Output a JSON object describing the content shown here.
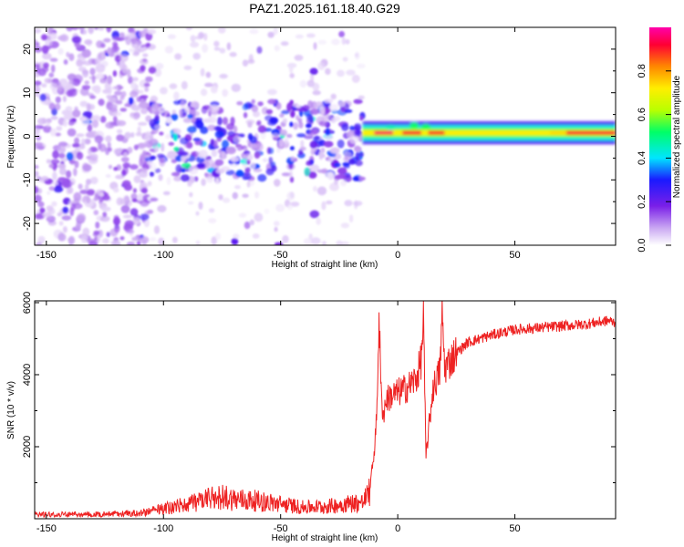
{
  "figure_title": "PAZ1.2025.161.18.40.G29",
  "colorbar": {
    "label": "Normalized spectral amplitude",
    "ticks": [
      0.0,
      0.2,
      0.4,
      0.6,
      0.8
    ],
    "tick_labels": [
      "0.0",
      "0.2",
      "0.4",
      "0.6",
      "0.8"
    ],
    "range": [
      0,
      1
    ],
    "colormap": [
      "#ffffff",
      "#c9a6f2",
      "#7a1fe8",
      "#1a1aff",
      "#00e5ff",
      "#00ff66",
      "#b9ff00",
      "#ffee00",
      "#ff8800",
      "#ff0033",
      "#ff00aa"
    ]
  },
  "chart_data": [
    {
      "type": "heatmap",
      "xlabel": "Height of straight line (km)",
      "ylabel": "Frequency (Hz)",
      "xlim": [
        -155,
        93
      ],
      "ylim": [
        -25,
        25
      ],
      "xticks": [
        -150,
        -100,
        -50,
        0,
        50
      ],
      "xtick_labels": [
        "-150",
        "-100",
        "-50",
        "0",
        "50"
      ],
      "yticks": [
        -20,
        -10,
        0,
        10,
        20
      ],
      "ytick_labels": [
        "-20",
        "-10",
        "0",
        "10",
        "20"
      ],
      "regions": [
        {
          "x_range": [
            -155,
            -105
          ],
          "y_range": [
            -25,
            25
          ],
          "amplitude": 0.12,
          "density": "high"
        },
        {
          "x_range": [
            -105,
            -15
          ],
          "y_range": [
            -10,
            8
          ],
          "amplitude": 0.22,
          "density": "high"
        },
        {
          "x_range": [
            -105,
            -15
          ],
          "y_range": [
            -25,
            25
          ],
          "amplitude": 0.06,
          "density": "low"
        },
        {
          "x_range": [
            -15,
            93
          ],
          "y_range": [
            0,
            2
          ],
          "amplitude": 0.55,
          "density": "band"
        },
        {
          "x_range": [
            -10,
            20
          ],
          "y_range": [
            0.5,
            1.5
          ],
          "amplitude": 0.95,
          "density": "peak"
        }
      ],
      "band_center_hz": 0.8
    },
    {
      "type": "line",
      "xlabel": "Height of straight line (km)",
      "ylabel": "SNR (10 * v/v)",
      "color": "#ee2222",
      "xlim": [
        -155,
        93
      ],
      "ylim": [
        0,
        6050
      ],
      "xticks": [
        -150,
        -100,
        -50,
        0,
        50
      ],
      "xtick_labels": [
        "-150",
        "-100",
        "-50",
        "0",
        "50"
      ],
      "yticks": [
        2000,
        4000,
        6000
      ],
      "ytick_labels": [
        "2000",
        "4000",
        "6000"
      ],
      "series": [
        {
          "x": [
            -155,
            -140,
            -120,
            -110,
            -100,
            -90,
            -80,
            -75,
            -70,
            -60,
            -50,
            -40,
            -30,
            -20,
            -15,
            -12,
            -10,
            -9,
            -8,
            -7,
            -6,
            -5,
            -3,
            0,
            3,
            5,
            8,
            10,
            11,
            12,
            15,
            18,
            19,
            20,
            25,
            30,
            40,
            50,
            60,
            70,
            80,
            90,
            93
          ],
          "y": [
            150,
            130,
            150,
            180,
            300,
            450,
            600,
            700,
            600,
            550,
            450,
            350,
            380,
            480,
            500,
            800,
            1900,
            2800,
            5600,
            3300,
            2900,
            3300,
            3400,
            3500,
            3600,
            3700,
            3900,
            4400,
            5600,
            1700,
            3600,
            4100,
            5700,
            4200,
            4600,
            4900,
            5100,
            5250,
            5300,
            5350,
            5400,
            5500,
            5450
          ]
        }
      ]
    }
  ]
}
